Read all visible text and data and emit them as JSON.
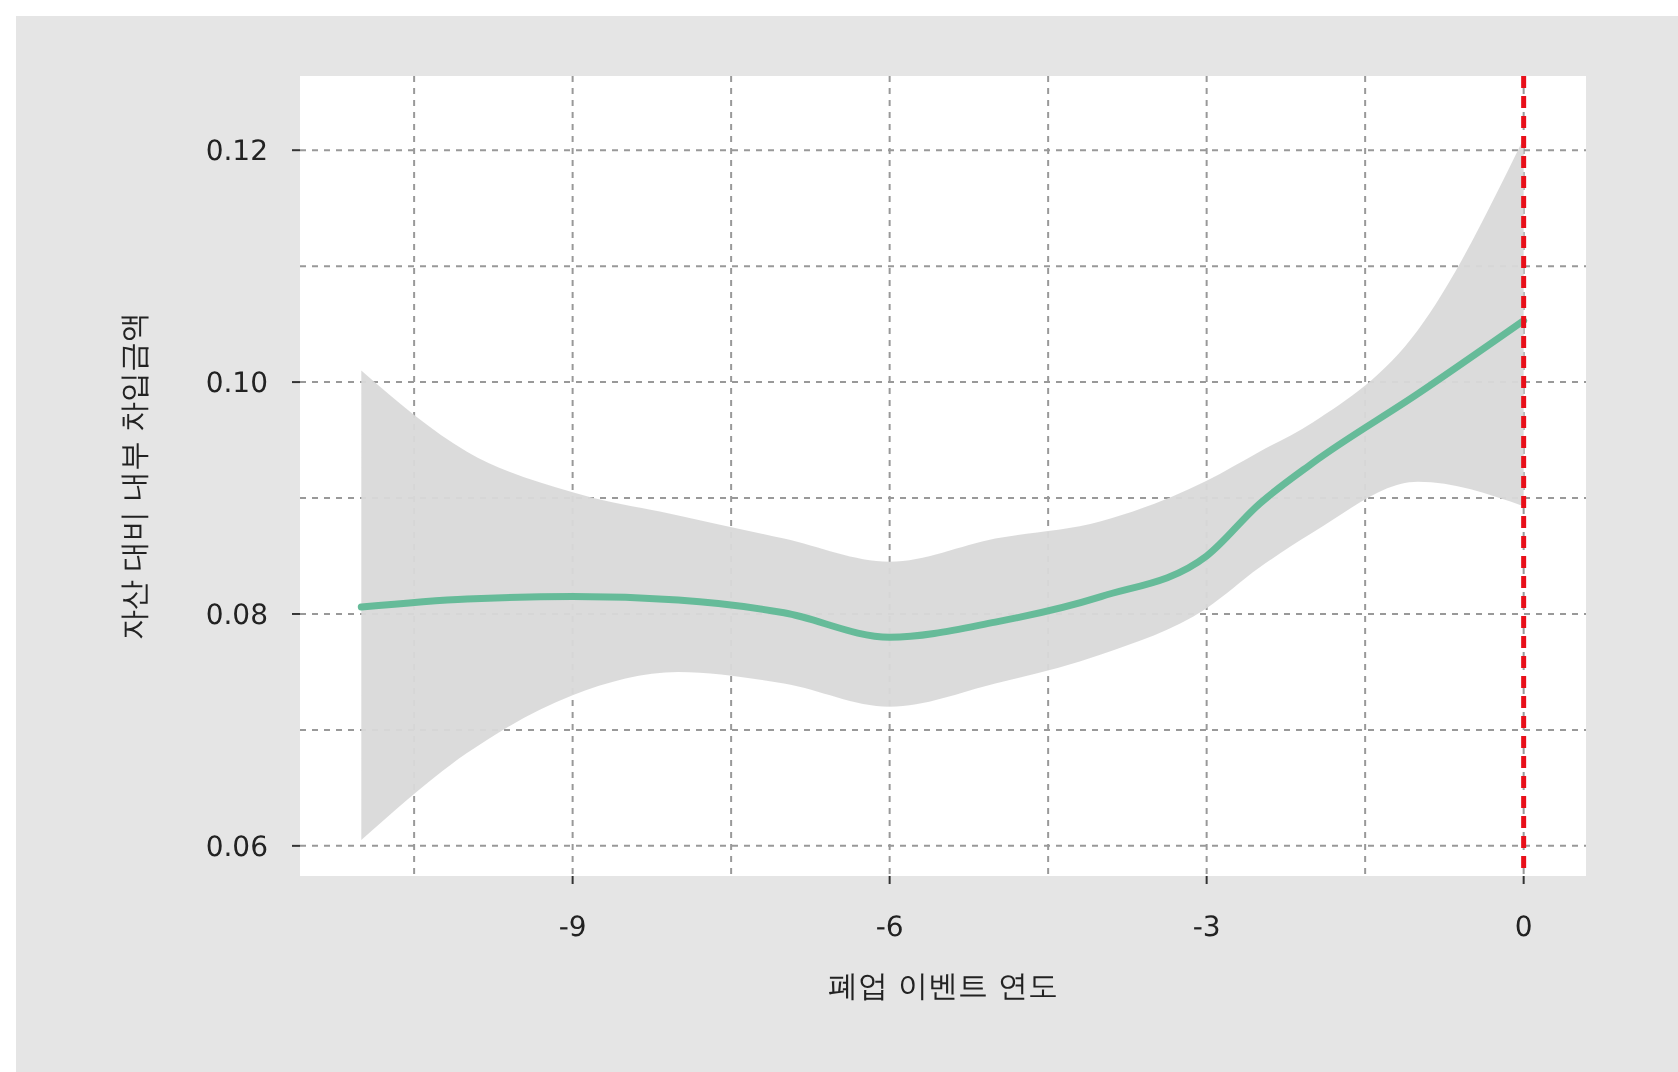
{
  "chart_data": {
    "type": "line",
    "xlabel": "폐업 이벤트 연도",
    "ylabel": "자산 대비 내부 차입금액",
    "x": [
      -11,
      -10,
      -9,
      -8,
      -7,
      -6,
      -5,
      -4,
      -3,
      -2.5,
      -2,
      -1,
      0
    ],
    "series": [
      {
        "color": "#66bb99",
        "values": [
          0.0806,
          0.0813,
          0.0815,
          0.0812,
          0.0801,
          0.078,
          0.0793,
          0.0815,
          0.085,
          0.0895,
          0.093,
          0.099,
          0.1053
        ],
        "lower": [
          0.0605,
          0.068,
          0.073,
          0.075,
          0.074,
          0.072,
          0.074,
          0.0765,
          0.0805,
          0.084,
          0.087,
          0.0914,
          0.0893
        ],
        "upper": [
          0.101,
          0.094,
          0.0905,
          0.0885,
          0.0865,
          0.0845,
          0.0865,
          0.088,
          0.0915,
          0.094,
          0.0965,
          0.1045,
          0.121
        ]
      }
    ],
    "xlim": [
      -11.58,
      0.59
    ],
    "ylim": [
      0.0574,
      0.1264
    ],
    "xticks": [
      {
        "value": -10.5,
        "label": null
      },
      -9,
      {
        "value": -7.5,
        "label": null
      },
      -6,
      {
        "value": -4.5,
        "label": null
      },
      -3,
      {
        "value": -1.5,
        "label": null
      },
      0
    ],
    "yticks": [
      0.06,
      {
        "value": 0.07,
        "label": null
      },
      {
        "value": 0.08,
        "label": "0.08"
      },
      {
        "value": 0.09,
        "label": null
      },
      {
        "value": 0.1,
        "label": "0.10"
      },
      {
        "value": 0.11,
        "label": null
      },
      0.12
    ],
    "grid": true,
    "ref_lines": [
      {
        "axis": "x",
        "value": 0,
        "color": "#e8101a",
        "line_style": "dashed"
      }
    ]
  }
}
